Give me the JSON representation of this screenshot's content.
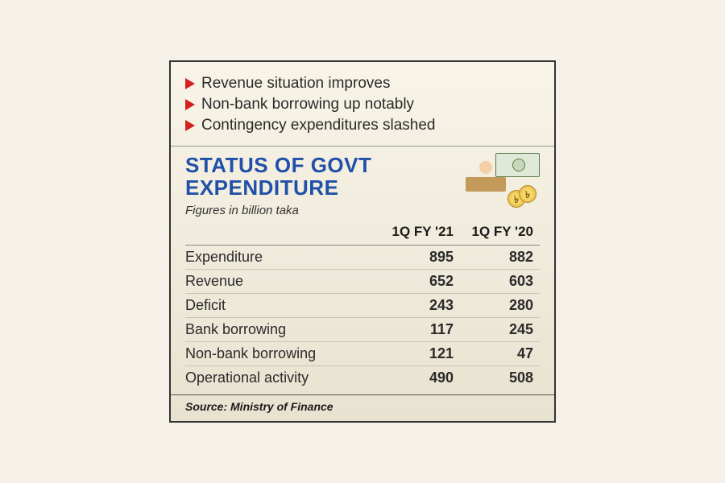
{
  "bullets": [
    "Revenue situation improves",
    "Non-bank borrowing up notably",
    "Contingency expenditures slashed"
  ],
  "title_line1": "STATUS OF GOVT",
  "title_line2": "EXPENDITURE",
  "subtitle": "Figures in billion taka",
  "columns": [
    "",
    "1Q FY '21",
    "1Q FY '20"
  ],
  "rows": [
    {
      "label": "Expenditure",
      "fy21": "895",
      "fy20": "882"
    },
    {
      "label": "Revenue",
      "fy21": "652",
      "fy20": "603"
    },
    {
      "label": "Deficit",
      "fy21": "243",
      "fy20": "280"
    },
    {
      "label": "Bank borrowing",
      "fy21": "117",
      "fy20": "245"
    },
    {
      "label": "Non-bank borrowing",
      "fy21": "121",
      "fy20": "47"
    },
    {
      "label": "Operational activity",
      "fy21": "490",
      "fy20": "508"
    }
  ],
  "source": "Source: Ministry of Finance",
  "colors": {
    "title": "#2050a8",
    "arrow": "#d32020",
    "text": "#2a2a2a",
    "border": "#333333",
    "row_border": "#c8c4b4",
    "background_top": "#f8f4e8",
    "background_bottom": "#e8e2d0"
  },
  "typography": {
    "title_fontsize": 26,
    "title_fontweight": 900,
    "bullet_fontsize": 19,
    "cell_fontsize": 18,
    "header_fontsize": 17,
    "subtitle_fontsize": 15,
    "source_fontsize": 14
  }
}
